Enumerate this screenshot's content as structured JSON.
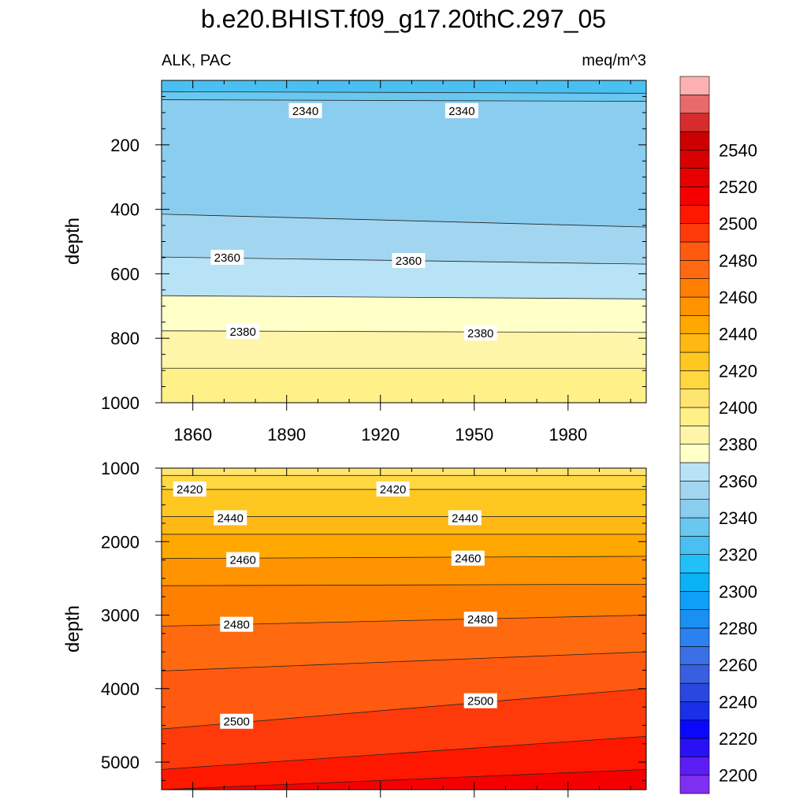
{
  "title": "b.e20.BHIST.f09_g17.20thC.297_05",
  "chart_data": [
    {
      "type": "heatmap",
      "panel": "upper",
      "title_left": "ALK, PAC",
      "title_right": "meq/m^3",
      "ylabel": "depth",
      "xlabel": "",
      "xlim": [
        1850,
        2005
      ],
      "ylim": [
        1000,
        0
      ],
      "xticks": [
        1860,
        1890,
        1920,
        1950,
        1980
      ],
      "yticks": [
        200,
        400,
        600,
        800,
        1000
      ],
      "contours": [
        {
          "level": 2330,
          "depths": [
            35,
            40
          ]
        },
        {
          "level": 2340,
          "depths": [
            60,
            65
          ]
        },
        {
          "level": 2350,
          "depths": [
            415,
            455
          ]
        },
        {
          "level": 2360,
          "depths": [
            548,
            570
          ]
        },
        {
          "level": 2370,
          "depths": [
            668,
            678
          ]
        },
        {
          "level": 2380,
          "depths": [
            777,
            782
          ]
        },
        {
          "level": 2390,
          "depths": [
            893,
            893
          ]
        }
      ],
      "contour_labels": [
        {
          "text": "2340",
          "x": 1896,
          "depth": 95
        },
        {
          "text": "2340",
          "x": 1946,
          "depth": 95
        },
        {
          "text": "2360",
          "x": 1871,
          "depth": 550
        },
        {
          "text": "2360",
          "x": 1929,
          "depth": 560
        },
        {
          "text": "2380",
          "x": 1876,
          "depth": 780
        },
        {
          "text": "2380",
          "x": 1952,
          "depth": 785
        }
      ]
    },
    {
      "type": "heatmap",
      "panel": "lower",
      "ylabel": "depth",
      "xlabel": "",
      "xlim": [
        1850,
        2005
      ],
      "ylim": [
        5375,
        1000
      ],
      "xticks": [
        1860,
        1890,
        1920,
        1950,
        1980
      ],
      "yticks": [
        1000,
        2000,
        3000,
        4000,
        5000
      ],
      "contours": [
        {
          "level": 2410,
          "depths": [
            1100,
            1100
          ]
        },
        {
          "level": 2420,
          "depths": [
            1290,
            1290
          ]
        },
        {
          "level": 2430,
          "depths": [
            1660,
            1660
          ]
        },
        {
          "level": 2440,
          "depths": [
            1900,
            1900
          ]
        },
        {
          "level": 2450,
          "depths": [
            2230,
            2200
          ]
        },
        {
          "level": 2460,
          "depths": [
            2600,
            2580
          ]
        },
        {
          "level": 2470,
          "depths": [
            3150,
            3000
          ]
        },
        {
          "level": 2480,
          "depths": [
            3760,
            3500
          ]
        },
        {
          "level": 2490,
          "depths": [
            4550,
            4000
          ]
        },
        {
          "level": 2500,
          "depths": [
            5100,
            4650
          ]
        },
        {
          "level": 2510,
          "depths": [
            5375,
            5100
          ]
        }
      ],
      "contour_labels": [
        {
          "text": "2420",
          "x": 1859,
          "depth": 1290
        },
        {
          "text": "2420",
          "x": 1924,
          "depth": 1290
        },
        {
          "text": "2440",
          "x": 1872,
          "depth": 1680
        },
        {
          "text": "2440",
          "x": 1947,
          "depth": 1680
        },
        {
          "text": "2460",
          "x": 1876,
          "depth": 2250
        },
        {
          "text": "2460",
          "x": 1948,
          "depth": 2230
        },
        {
          "text": "2480",
          "x": 1874,
          "depth": 3130
        },
        {
          "text": "2480",
          "x": 1952,
          "depth": 3060
        },
        {
          "text": "2500",
          "x": 1874,
          "depth": 4450
        },
        {
          "text": "2500",
          "x": 1952,
          "depth": 4170
        }
      ]
    }
  ],
  "colorbar": {
    "min": 2190,
    "step": 10,
    "colors": [
      "#7f2fef",
      "#5a1ef5",
      "#2a10f5",
      "#0a08fa",
      "#1a30e8",
      "#2a47e0",
      "#3a5ee0",
      "#3a6fe5",
      "#2a82f0",
      "#1a90f5",
      "#0ea0f8",
      "#08b2f5",
      "#22c0f8",
      "#4ac0f2",
      "#68c8f0",
      "#8acdee",
      "#a2d6f0",
      "#b8e2f5",
      "#ffffc8",
      "#fff5a8",
      "#fff088",
      "#ffe570",
      "#ffd840",
      "#ffc820",
      "#ffb814",
      "#ffa800",
      "#ff9400",
      "#ff7f00",
      "#ff6a10",
      "#ff5a10",
      "#ff3a0a",
      "#ff1800",
      "#f50000",
      "#e80000",
      "#d80000",
      "#cc0000",
      "#d82c2c",
      "#e86a6a",
      "#ffb0b0"
    ],
    "ticks": [
      2200,
      2220,
      2240,
      2260,
      2280,
      2300,
      2320,
      2340,
      2360,
      2380,
      2400,
      2420,
      2440,
      2460,
      2480,
      2500,
      2520,
      2540
    ]
  }
}
